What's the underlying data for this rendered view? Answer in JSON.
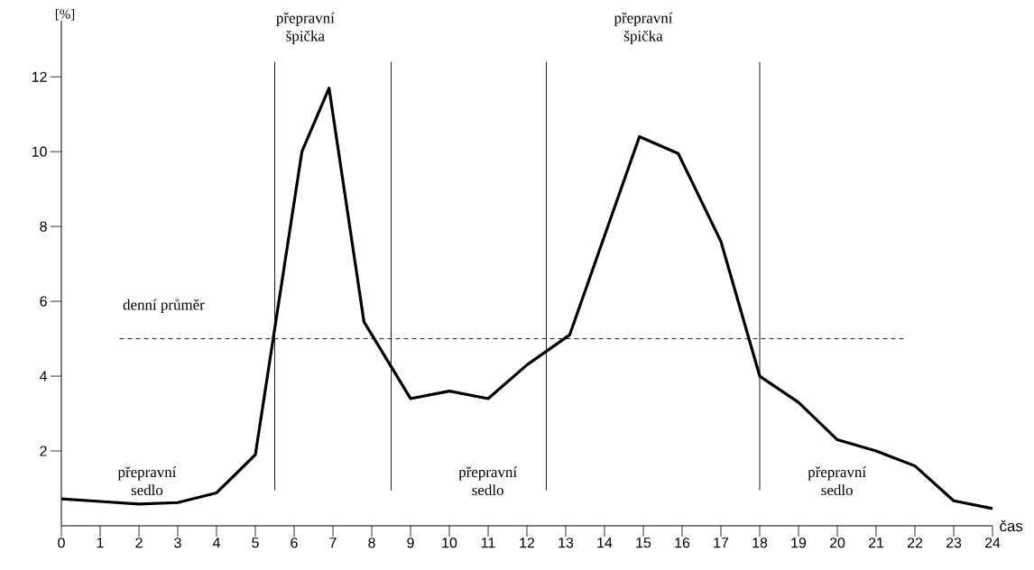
{
  "chart_data": {
    "type": "line",
    "xlabel": "čas",
    "ylabel": "[%]",
    "x": [
      0,
      1,
      2,
      3,
      4,
      5,
      6.2,
      6.9,
      7.8,
      9,
      10,
      11,
      12,
      13.1,
      14.9,
      15.9,
      17,
      18,
      19,
      20,
      21,
      22,
      23,
      24
    ],
    "series": [
      {
        "color": "#000000",
        "line_style": "solid",
        "values": [
          0.72,
          0.65,
          0.58,
          0.62,
          0.88,
          1.9,
          10,
          11.7,
          5.45,
          3.4,
          3.6,
          3.4,
          4.3,
          5.1,
          10.4,
          9.95,
          7.6,
          4.0,
          3.3,
          2.3,
          2.0,
          1.6,
          0.67,
          0.46
        ]
      }
    ],
    "xlim": [
      0,
      24
    ],
    "ylim": [
      0,
      13.5
    ],
    "xticks": [
      0,
      1,
      2,
      3,
      4,
      5,
      6,
      7,
      8,
      9,
      10,
      11,
      12,
      13,
      14,
      15,
      16,
      17,
      18,
      19,
      20,
      21,
      22,
      23,
      24
    ],
    "yticks": [
      2,
      4,
      6,
      8,
      10,
      12
    ],
    "ref_lines": [
      {
        "axis": "y",
        "value": 5,
        "label": "denní průměr",
        "line_style": "dashed"
      },
      {
        "axis": "x",
        "value": 5.5,
        "line_style": "solid"
      },
      {
        "axis": "x",
        "value": 8.5,
        "line_style": "solid"
      },
      {
        "axis": "x",
        "value": 12.5,
        "line_style": "solid"
      },
      {
        "axis": "x",
        "value": 18,
        "line_style": "solid"
      }
    ],
    "annotations": [
      "přepravní špička",
      "přepravní špička",
      "přepravní sedlo",
      "přepravní sedlo",
      "přepravní sedlo"
    ]
  }
}
